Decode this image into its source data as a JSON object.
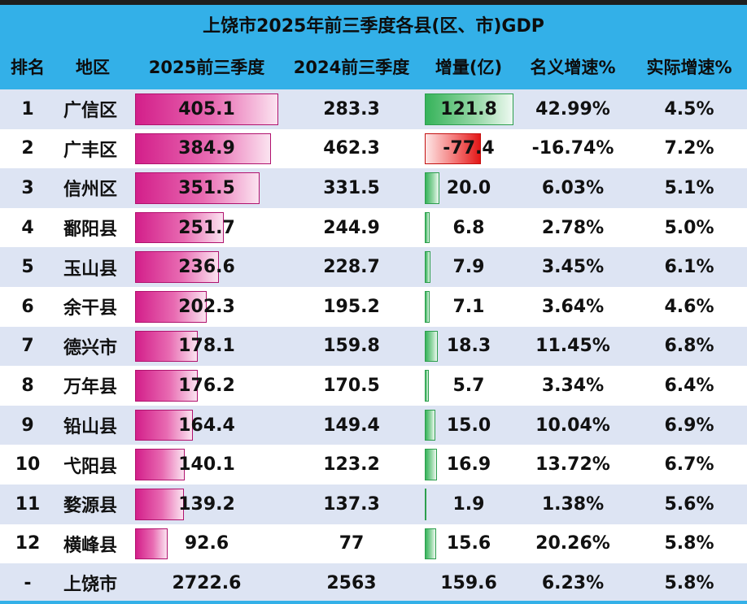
{
  "title": "上饶市2025年前三季度各县(区、市)GDP",
  "headers": [
    "排名",
    "地区",
    "2025前三季度",
    "2024前三季度",
    "增量(亿)",
    "名义增速%",
    "实际增速%"
  ],
  "chart_data": {
    "type": "table",
    "title": "上饶市2025年前三季度各县(区、市)GDP",
    "columns": [
      "排名",
      "地区",
      "2025前三季度",
      "2024前三季度",
      "增量(亿)",
      "名义增速%",
      "实际增速%"
    ],
    "rows": [
      {
        "rank": "1",
        "region": "广信区",
        "gdp2025": "405.1",
        "gdp2024": "283.3",
        "delta": "121.8",
        "nominal": "42.99%",
        "real": "4.5%"
      },
      {
        "rank": "2",
        "region": "广丰区",
        "gdp2025": "384.9",
        "gdp2024": "462.3",
        "delta": "-77.4",
        "nominal": "-16.74%",
        "real": "7.2%"
      },
      {
        "rank": "3",
        "region": "信州区",
        "gdp2025": "351.5",
        "gdp2024": "331.5",
        "delta": "20.0",
        "nominal": "6.03%",
        "real": "5.1%"
      },
      {
        "rank": "4",
        "region": "鄱阳县",
        "gdp2025": "251.7",
        "gdp2024": "244.9",
        "delta": "6.8",
        "nominal": "2.78%",
        "real": "5.0%"
      },
      {
        "rank": "5",
        "region": "玉山县",
        "gdp2025": "236.6",
        "gdp2024": "228.7",
        "delta": "7.9",
        "nominal": "3.45%",
        "real": "6.1%"
      },
      {
        "rank": "6",
        "region": "余干县",
        "gdp2025": "202.3",
        "gdp2024": "195.2",
        "delta": "7.1",
        "nominal": "3.64%",
        "real": "4.6%"
      },
      {
        "rank": "7",
        "region": "德兴市",
        "gdp2025": "178.1",
        "gdp2024": "159.8",
        "delta": "18.3",
        "nominal": "11.45%",
        "real": "6.8%"
      },
      {
        "rank": "8",
        "region": "万年县",
        "gdp2025": "176.2",
        "gdp2024": "170.5",
        "delta": "5.7",
        "nominal": "3.34%",
        "real": "6.4%"
      },
      {
        "rank": "9",
        "region": "铅山县",
        "gdp2025": "164.4",
        "gdp2024": "149.4",
        "delta": "15.0",
        "nominal": "10.04%",
        "real": "6.9%"
      },
      {
        "rank": "10",
        "region": "弋阳县",
        "gdp2025": "140.1",
        "gdp2024": "123.2",
        "delta": "16.9",
        "nominal": "13.72%",
        "real": "6.7%"
      },
      {
        "rank": "11",
        "region": "婺源县",
        "gdp2025": "139.2",
        "gdp2024": "137.3",
        "delta": "1.9",
        "nominal": "1.38%",
        "real": "5.6%"
      },
      {
        "rank": "12",
        "region": "横峰县",
        "gdp2025": "92.6",
        "gdp2024": "77",
        "delta": "15.6",
        "nominal": "20.26%",
        "real": "5.8%"
      }
    ],
    "total": {
      "rank": "-",
      "region": "上饶市",
      "gdp2025": "2722.6",
      "gdp2024": "2563",
      "delta": "159.6",
      "nominal": "6.23%",
      "real": "5.8%"
    },
    "colors": {
      "header_bg": "#33b0e8",
      "row_band": "#dde4f3",
      "gdp_bar": "#d31f8a",
      "positive_bar": "#36b35a",
      "negative_bar": "#e21717"
    }
  }
}
